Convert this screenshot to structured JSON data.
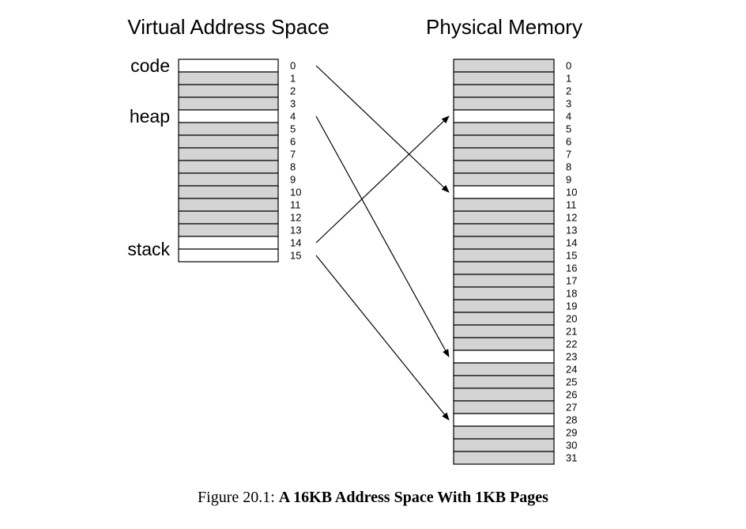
{
  "virtual": {
    "title": "Virtual Address Space",
    "pages": 16,
    "used_pages": [
      0,
      4,
      14,
      15
    ],
    "regions": [
      {
        "label": "code",
        "page": 0
      },
      {
        "label": "heap",
        "page": 4
      },
      {
        "label": "stack",
        "page": 14.5
      }
    ]
  },
  "physical": {
    "title": "Physical Memory",
    "frames": 32,
    "used_frames": [
      4,
      10,
      23,
      28
    ]
  },
  "mappings": [
    {
      "virtual_page": 0,
      "physical_frame": 10
    },
    {
      "virtual_page": 4,
      "physical_frame": 23
    },
    {
      "virtual_page": 14,
      "physical_frame": 4
    },
    {
      "virtual_page": 15,
      "physical_frame": 28
    }
  ],
  "colors": {
    "unused": "#d4d4d4",
    "used": "#ffffff",
    "stroke": "#000000"
  },
  "caption": {
    "prefix": "Figure 20.1:",
    "text": "A 16KB Address Space With 1KB Pages"
  }
}
